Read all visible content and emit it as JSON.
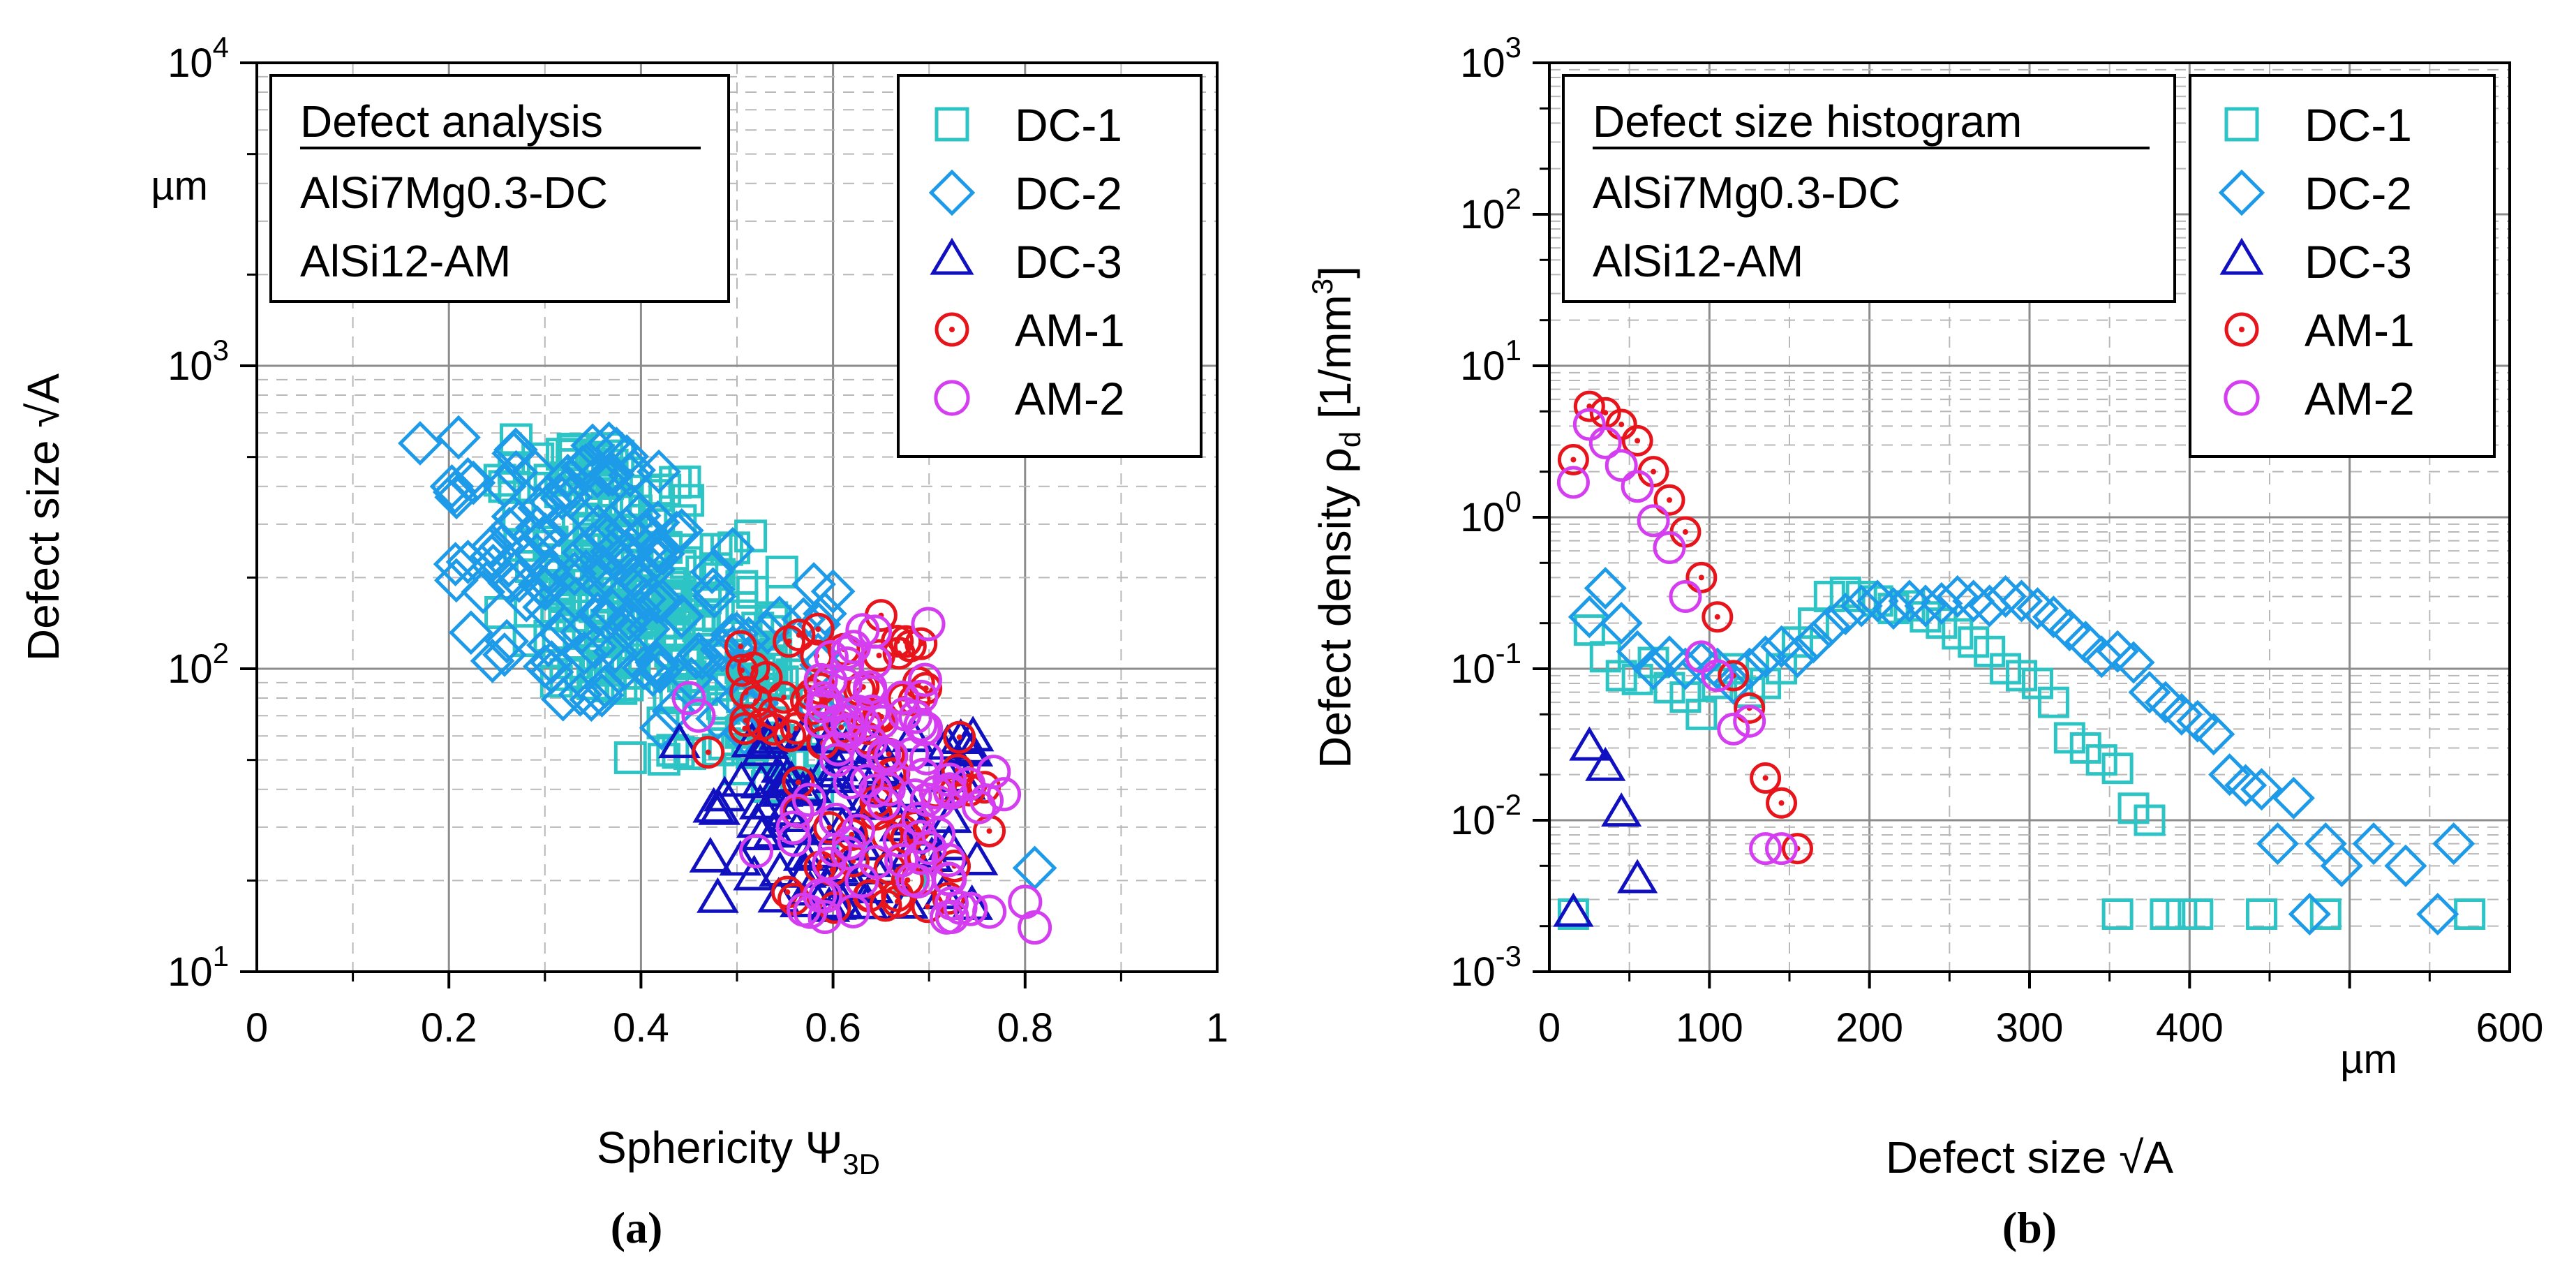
{
  "colors": {
    "DC-1": "#2cc4c4",
    "DC-2": "#1e9be8",
    "DC-3": "#1010c0",
    "AM-1": "#e8141c",
    "AM-2": "#d43ef0"
  },
  "panel_a": {
    "caption": "(a)",
    "info_title": "Defect analysis",
    "info_lines": [
      "AlSi7Mg0.3-DC",
      "AlSi12-AM"
    ],
    "x_label": "Sphericity Ψ",
    "x_label_sub": "3D",
    "y_label": "Defect size √A",
    "unit_label": "µm",
    "x_ticks": [
      "0",
      "0.2",
      "0.4",
      "0.6",
      "0.8",
      "1"
    ],
    "y_ticks": [
      {
        "base": "10",
        "exp": "1"
      },
      {
        "base": "10",
        "exp": "2"
      },
      {
        "base": "10",
        "exp": "3"
      },
      {
        "base": "10",
        "exp": "4"
      }
    ],
    "legend": [
      "DC-1",
      "DC-2",
      "DC-3",
      "AM-1",
      "AM-2"
    ]
  },
  "panel_b": {
    "caption": "(b)",
    "info_title": "Defect size histogram",
    "info_lines": [
      "AlSi7Mg0.3-DC",
      "AlSi12-AM"
    ],
    "x_label": "Defect size √A",
    "y_label": "Defect density ρ",
    "y_label_sub": "d",
    "y_label_unit": " [1/mm",
    "y_label_unit_sup": "3",
    "y_label_unit_close": "]",
    "unit_label": "µm",
    "x_ticks": [
      "0",
      "100",
      "200",
      "300",
      "400",
      "600"
    ],
    "y_ticks": [
      {
        "base": "10",
        "exp": "-3"
      },
      {
        "base": "10",
        "exp": "-2"
      },
      {
        "base": "10",
        "exp": "-1"
      },
      {
        "base": "10",
        "exp": "0"
      },
      {
        "base": "10",
        "exp": "1"
      },
      {
        "base": "10",
        "exp": "2"
      },
      {
        "base": "10",
        "exp": "3"
      }
    ],
    "legend": [
      "DC-1",
      "DC-2",
      "DC-3",
      "AM-1",
      "AM-2"
    ]
  },
  "chart_data": [
    {
      "type": "scatter",
      "title": "Defect analysis",
      "xlabel": "Sphericity Ψ3D",
      "ylabel": "Defect size √A (µm)",
      "xlim": [
        0,
        1
      ],
      "ylim": [
        10,
        10000
      ],
      "yscale": "log",
      "legend_position": "top-right",
      "series": [
        {
          "name": "DC-1",
          "marker": "square",
          "clusters": [
            {
              "x": [
                0.25,
                0.45
              ],
              "y": [
                150,
                560
              ],
              "n": 70
            },
            {
              "x": [
                0.28,
                0.55
              ],
              "y": [
                80,
                300
              ],
              "n": 80
            },
            {
              "x": [
                0.35,
                0.55
              ],
              "y": [
                50,
                180
              ],
              "n": 45
            },
            {
              "x": [
                0.45,
                0.6
              ],
              "y": [
                40,
                100
              ],
              "n": 20
            }
          ],
          "points": [
            [
              0.27,
              570
            ],
            [
              0.37,
              470
            ],
            [
              0.62,
              25
            ],
            [
              0.68,
              20
            ]
          ]
        },
        {
          "name": "DC-2",
          "marker": "diamond",
          "clusters": [
            {
              "x": [
                0.2,
                0.42
              ],
              "y": [
                180,
                560
              ],
              "n": 60
            },
            {
              "x": [
                0.22,
                0.5
              ],
              "y": [
                90,
                300
              ],
              "n": 55
            },
            {
              "x": [
                0.3,
                0.62
              ],
              "y": [
                60,
                170
              ],
              "n": 40
            }
          ],
          "points": [
            [
              0.17,
              555
            ],
            [
              0.21,
              580
            ],
            [
              0.81,
              22
            ],
            [
              0.6,
              180
            ],
            [
              0.58,
              190
            ]
          ]
        },
        {
          "name": "DC-3",
          "marker": "triangle",
          "clusters": [
            {
              "x": [
                0.47,
                0.75
              ],
              "y": [
                16,
                60
              ],
              "n": 85
            }
          ],
          "points": [
            [
              0.44,
              56
            ],
            [
              0.57,
              60
            ],
            [
              0.75,
              23
            ]
          ]
        },
        {
          "name": "AM-1",
          "marker": "circle-dot",
          "clusters": [
            {
              "x": [
                0.5,
                0.7
              ],
              "y": [
                60,
                145
              ],
              "n": 40
            },
            {
              "x": [
                0.55,
                0.77
              ],
              "y": [
                16,
                60
              ],
              "n": 40
            }
          ],
          "points": [
            [
              0.47,
              53
            ],
            [
              0.65,
              150
            ]
          ]
        },
        {
          "name": "AM-2",
          "marker": "circle",
          "clusters": [
            {
              "x": [
                0.58,
                0.7
              ],
              "y": [
                50,
                145
              ],
              "n": 40
            },
            {
              "x": [
                0.55,
                0.78
              ],
              "y": [
                15,
                50
              ],
              "n": 55
            }
          ],
          "points": [
            [
              0.45,
              80
            ],
            [
              0.46,
              70
            ],
            [
              0.8,
              17
            ],
            [
              0.81,
              14
            ],
            [
              0.52,
              25
            ]
          ]
        }
      ]
    },
    {
      "type": "scatter",
      "title": "Defect size histogram",
      "xlabel": "Defect size √A (µm)",
      "ylabel": "Defect density ρd [1/mm3]",
      "xlim": [
        0,
        600
      ],
      "ylim": [
        0.001,
        1000
      ],
      "yscale": "log",
      "legend_position": "top-right",
      "series": [
        {
          "name": "DC-1",
          "marker": "square",
          "points": [
            [
              15,
              0.0024
            ],
            [
              25,
              0.18
            ],
            [
              35,
              0.12
            ],
            [
              45,
              0.09
            ],
            [
              55,
              0.085
            ],
            [
              65,
              0.11
            ],
            [
              75,
              0.075
            ],
            [
              85,
              0.065
            ],
            [
              95,
              0.05
            ],
            [
              105,
              0.08
            ],
            [
              115,
              0.1
            ],
            [
              125,
              0.07
            ],
            [
              135,
              0.08
            ],
            [
              145,
              0.1
            ],
            [
              155,
              0.15
            ],
            [
              165,
              0.2
            ],
            [
              175,
              0.3
            ],
            [
              185,
              0.32
            ],
            [
              195,
              0.3
            ],
            [
              205,
              0.28
            ],
            [
              215,
              0.25
            ],
            [
              225,
              0.26
            ],
            [
              235,
              0.22
            ],
            [
              245,
              0.2
            ],
            [
              255,
              0.17
            ],
            [
              265,
              0.15
            ],
            [
              275,
              0.13
            ],
            [
              285,
              0.1
            ],
            [
              295,
              0.09
            ],
            [
              305,
              0.08
            ],
            [
              315,
              0.06
            ],
            [
              325,
              0.035
            ],
            [
              335,
              0.03
            ],
            [
              345,
              0.025
            ],
            [
              355,
              0.022
            ],
            [
              365,
              0.012
            ],
            [
              375,
              0.01
            ],
            [
              355,
              0.0024
            ],
            [
              385,
              0.0024
            ],
            [
              395,
              0.0024
            ],
            [
              405,
              0.0024
            ],
            [
              445,
              0.0024
            ],
            [
              485,
              0.0024
            ],
            [
              575,
              0.0024
            ]
          ]
        },
        {
          "name": "DC-2",
          "marker": "diamond",
          "points": [
            [
              25,
              0.22
            ],
            [
              35,
              0.34
            ],
            [
              45,
              0.2
            ],
            [
              55,
              0.13
            ],
            [
              65,
              0.1
            ],
            [
              75,
              0.12
            ],
            [
              85,
              0.1
            ],
            [
              95,
              0.11
            ],
            [
              105,
              0.1
            ],
            [
              115,
              0.08
            ],
            [
              125,
              0.1
            ],
            [
              135,
              0.12
            ],
            [
              145,
              0.14
            ],
            [
              155,
              0.12
            ],
            [
              165,
              0.15
            ],
            [
              175,
              0.19
            ],
            [
              185,
              0.23
            ],
            [
              195,
              0.26
            ],
            [
              205,
              0.28
            ],
            [
              215,
              0.25
            ],
            [
              225,
              0.28
            ],
            [
              235,
              0.26
            ],
            [
              245,
              0.27
            ],
            [
              255,
              0.3
            ],
            [
              265,
              0.28
            ],
            [
              275,
              0.26
            ],
            [
              285,
              0.3
            ],
            [
              295,
              0.28
            ],
            [
              305,
              0.25
            ],
            [
              315,
              0.22
            ],
            [
              325,
              0.18
            ],
            [
              335,
              0.15
            ],
            [
              345,
              0.12
            ],
            [
              355,
              0.13
            ],
            [
              365,
              0.11
            ],
            [
              375,
              0.07
            ],
            [
              385,
              0.06
            ],
            [
              395,
              0.05
            ],
            [
              405,
              0.045
            ],
            [
              415,
              0.037
            ],
            [
              425,
              0.02
            ],
            [
              435,
              0.017
            ],
            [
              445,
              0.016
            ],
            [
              465,
              0.014
            ],
            [
              455,
              0.007
            ],
            [
              475,
              0.0024
            ],
            [
              485,
              0.007
            ],
            [
              495,
              0.005
            ],
            [
              515,
              0.007
            ],
            [
              535,
              0.005
            ],
            [
              555,
              0.0024
            ],
            [
              565,
              0.007
            ]
          ]
        },
        {
          "name": "DC-3",
          "marker": "triangle",
          "points": [
            [
              15,
              0.0024
            ],
            [
              25,
              0.03
            ],
            [
              35,
              0.022
            ],
            [
              45,
              0.011
            ],
            [
              55,
              0.004
            ]
          ]
        },
        {
          "name": "AM-1",
          "marker": "circle-dot",
          "points": [
            [
              15,
              2.4
            ],
            [
              25,
              5.4
            ],
            [
              35,
              4.9
            ],
            [
              45,
              4.1
            ],
            [
              55,
              3.2
            ],
            [
              65,
              2.0
            ],
            [
              75,
              1.3
            ],
            [
              85,
              0.8
            ],
            [
              95,
              0.4
            ],
            [
              105,
              0.22
            ],
            [
              115,
              0.09
            ],
            [
              125,
              0.055
            ],
            [
              135,
              0.019
            ],
            [
              145,
              0.013
            ],
            [
              155,
              0.0065
            ]
          ]
        },
        {
          "name": "AM-2",
          "marker": "circle",
          "points": [
            [
              15,
              1.7
            ],
            [
              25,
              4.1
            ],
            [
              35,
              3.1
            ],
            [
              45,
              2.2
            ],
            [
              55,
              1.6
            ],
            [
              65,
              0.95
            ],
            [
              75,
              0.63
            ],
            [
              85,
              0.3
            ],
            [
              95,
              0.12
            ],
            [
              105,
              0.09
            ],
            [
              115,
              0.04
            ],
            [
              125,
              0.045
            ],
            [
              135,
              0.0065
            ],
            [
              145,
              0.0065
            ]
          ]
        }
      ]
    }
  ]
}
